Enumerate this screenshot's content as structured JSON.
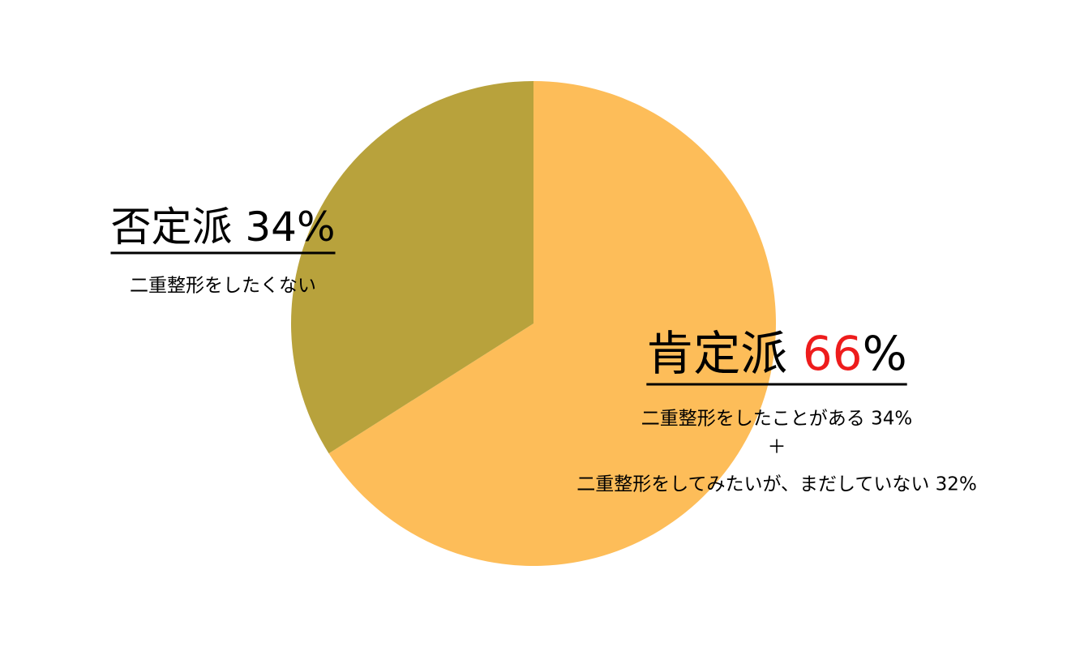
{
  "chart_data": {
    "type": "pie",
    "categories": [
      "肯定派",
      "否定派"
    ],
    "values": [
      66,
      34
    ],
    "value_labels": [
      "66%",
      "34%"
    ],
    "colors": [
      "#fdbd59",
      "#b8a23c"
    ],
    "highlight_colors": [
      "#ee1c1c",
      null
    ],
    "details": [
      [
        "二重整形をしたことがある 34%",
        "＋",
        "二重整形をしてみたいが、まだしていない 32%"
      ],
      [
        "二重整形をしたくない"
      ]
    ]
  }
}
